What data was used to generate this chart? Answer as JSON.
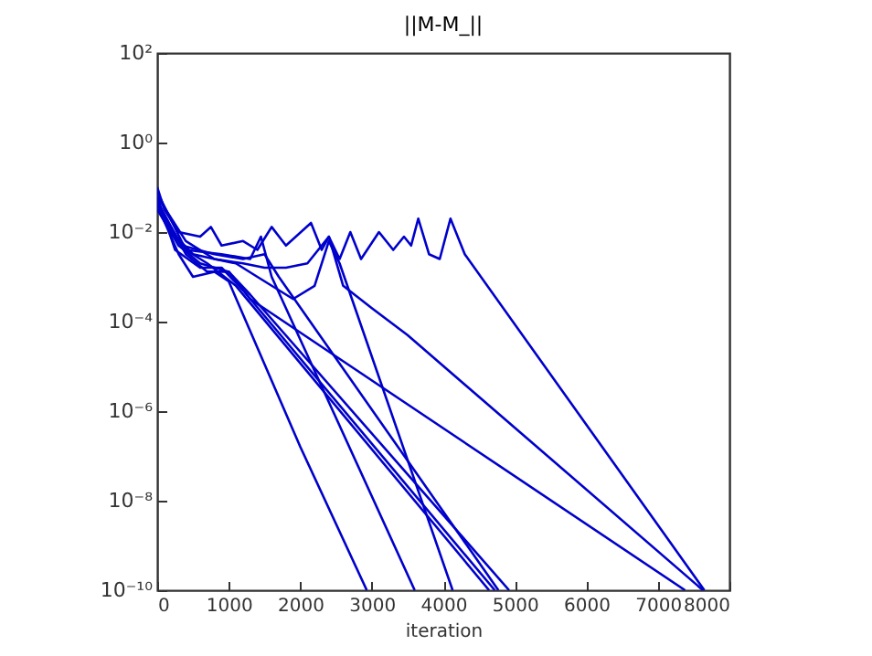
{
  "chart_data": {
    "type": "line",
    "title": "||M-M_||",
    "xlabel": "iteration",
    "log": "y",
    "grid": false,
    "legend": false,
    "marker": "none",
    "line_style": "solid",
    "xlim": [
      0,
      8000
    ],
    "xticks": [
      0,
      1000,
      2000,
      3000,
      4000,
      5000,
      6000,
      7000,
      8000
    ],
    "ylim": [
      1e-10,
      100
    ],
    "yticks": [
      {
        "value": 100,
        "label": "10²"
      },
      {
        "value": 1,
        "label": "10⁰"
      },
      {
        "value": 0.01,
        "label": "10⁻²"
      },
      {
        "value": 0.0001,
        "label": "10⁻⁴"
      },
      {
        "value": 1e-06,
        "label": "10⁻⁶"
      },
      {
        "value": 1e-08,
        "label": "10⁻⁸"
      },
      {
        "value": 1e-10,
        "label": "10⁻¹⁰"
      }
    ],
    "series": [
      {
        "color": "#0000cc",
        "x": [
          0,
          100,
          300,
          600,
          750,
          900,
          1200,
          1400,
          1600,
          1800,
          2150,
          2300,
          2400,
          2550,
          2700,
          2850,
          3100,
          3300,
          3450,
          3550,
          3650,
          3800,
          3950,
          4100,
          4300,
          7650
        ],
        "values": [
          0.1,
          0.032,
          0.01,
          0.0079,
          0.013,
          0.005,
          0.0063,
          0.004,
          0.013,
          0.005,
          0.016,
          0.004,
          0.0079,
          0.0025,
          0.01,
          0.0025,
          0.01,
          0.004,
          0.0079,
          0.005,
          0.02,
          0.0032,
          0.0025,
          0.02,
          0.0032,
          1e-10
        ]
      },
      {
        "color": "#0000cc",
        "x": [
          0,
          200,
          500,
          800,
          1200,
          1500,
          1800,
          2100,
          2400,
          2600,
          3000,
          3500,
          7630
        ],
        "values": [
          0.05,
          0.01,
          0.0032,
          0.0025,
          0.002,
          0.0016,
          0.0016,
          0.002,
          0.0079,
          0.00063,
          0.0002,
          5e-05,
          1e-10
        ]
      },
      {
        "color": "#0000cc",
        "x": [
          0,
          300,
          600,
          1000,
          1300,
          7380
        ],
        "values": [
          0.032,
          0.005,
          0.002,
          0.0013,
          0.00032,
          1e-10
        ]
      },
      {
        "color": "#0000cc",
        "x": [
          0,
          400,
          800,
          1100,
          1400,
          1900,
          2200,
          2400,
          2550,
          4130
        ],
        "values": [
          0.063,
          0.0063,
          0.0025,
          0.002,
          0.001,
          0.00032,
          0.00063,
          0.0063,
          0.002,
          1e-10
        ]
      },
      {
        "color": "#0000cc",
        "x": [
          0,
          300,
          500,
          800,
          1000,
          2000,
          2930
        ],
        "values": [
          0.04,
          0.0032,
          0.001,
          0.0013,
          0.00079,
          1.6e-07,
          1e-10
        ]
      },
      {
        "color": "#0000cc",
        "x": [
          0,
          400,
          900,
          1300,
          1450,
          1600,
          3600
        ],
        "values": [
          0.079,
          0.004,
          0.0032,
          0.0025,
          0.0079,
          0.001,
          1e-10
        ]
      },
      {
        "color": "#0000cc",
        "x": [
          0,
          300,
          700,
          1100,
          4640
        ],
        "values": [
          0.05,
          0.005,
          0.002,
          0.00063,
          1e-10
        ]
      },
      {
        "color": "#0000cc",
        "x": [
          0,
          250,
          600,
          900,
          1200,
          4720
        ],
        "values": [
          0.063,
          0.004,
          0.0016,
          0.0016,
          0.0005,
          1e-10
        ]
      },
      {
        "color": "#0000cc",
        "x": [
          0,
          350,
          800,
          1200,
          1500,
          1700,
          4770
        ],
        "values": [
          0.04,
          0.005,
          0.0032,
          0.0025,
          0.0032,
          0.001,
          1e-10
        ]
      },
      {
        "color": "#0000cc",
        "x": [
          0,
          400,
          700,
          1000,
          1300,
          4920
        ],
        "values": [
          0.05,
          0.0032,
          0.0013,
          0.0013,
          0.0004,
          1e-10
        ]
      }
    ]
  }
}
